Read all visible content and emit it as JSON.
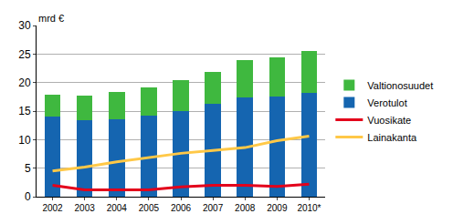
{
  "chart_data": {
    "type": "bar",
    "stacked": true,
    "y_label": "mrd €",
    "categories": [
      "2002",
      "2003",
      "2004",
      "2005",
      "2006",
      "2007",
      "2008",
      "2009",
      "2010*"
    ],
    "series": [
      {
        "name": "Verotulot",
        "type": "bar",
        "color": "#1565b0",
        "values": [
          14.1,
          13.4,
          13.6,
          14.2,
          15.0,
          16.2,
          17.4,
          17.6,
          18.2
        ]
      },
      {
        "name": "Valtionosuudet",
        "type": "bar",
        "color": "#3fb83f",
        "values": [
          3.7,
          4.3,
          4.8,
          5.0,
          5.5,
          5.7,
          6.5,
          6.8,
          7.4
        ]
      },
      {
        "name": "Vuosikate",
        "type": "line",
        "color": "#e3001b",
        "values": [
          2.0,
          1.2,
          1.2,
          1.2,
          1.7,
          2.0,
          2.0,
          1.8,
          2.2
        ]
      },
      {
        "name": "Lainakanta",
        "type": "line",
        "color": "#ffc847",
        "values": [
          4.5,
          5.2,
          6.1,
          6.9,
          7.6,
          8.1,
          8.6,
          9.8,
          10.6
        ]
      }
    ],
    "ylim": [
      0,
      30
    ],
    "yticks": [
      0,
      5,
      10,
      15,
      20,
      25,
      30
    ],
    "grid": true,
    "legend": "right"
  }
}
